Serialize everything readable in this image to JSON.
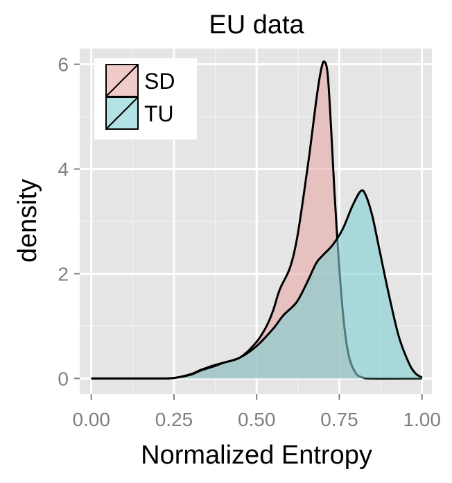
{
  "chart_data": {
    "type": "area",
    "title": "EU data",
    "xlabel": "Normalized Entropy",
    "ylabel": "density",
    "xlim": [
      -0.035,
      1.03
    ],
    "ylim": [
      -0.3,
      6.3
    ],
    "xticks": [
      "0.00",
      "0.25",
      "0.50",
      "0.75",
      "1.00"
    ],
    "xtick_values": [
      0,
      0.25,
      0.5,
      0.75,
      1.0
    ],
    "yticks": [
      "0",
      "2",
      "4",
      "6"
    ],
    "ytick_values": [
      0,
      2,
      4,
      6
    ],
    "grid": true,
    "legend_position": "top-left",
    "series": [
      {
        "name": "SD",
        "fill": "#e8a6a6",
        "points": [
          [
            0,
            0
          ],
          [
            0.2,
            0
          ],
          [
            0.25,
            0.01
          ],
          [
            0.3,
            0.08
          ],
          [
            0.33,
            0.16
          ],
          [
            0.37,
            0.25
          ],
          [
            0.4,
            0.3
          ],
          [
            0.45,
            0.4
          ],
          [
            0.5,
            0.7
          ],
          [
            0.53,
            1.0
          ],
          [
            0.55,
            1.3
          ],
          [
            0.57,
            1.7
          ],
          [
            0.6,
            2.1
          ],
          [
            0.62,
            2.6
          ],
          [
            0.64,
            3.4
          ],
          [
            0.66,
            4.3
          ],
          [
            0.68,
            5.3
          ],
          [
            0.695,
            5.9
          ],
          [
            0.705,
            6.05
          ],
          [
            0.715,
            5.8
          ],
          [
            0.725,
            4.8
          ],
          [
            0.735,
            3.6
          ],
          [
            0.75,
            2.1
          ],
          [
            0.765,
            1.0
          ],
          [
            0.78,
            0.4
          ],
          [
            0.8,
            0.1
          ],
          [
            0.82,
            0.02
          ],
          [
            0.85,
            0
          ],
          [
            1.0,
            0
          ]
        ]
      },
      {
        "name": "TU",
        "fill": "#7ecfd1",
        "points": [
          [
            0,
            0
          ],
          [
            0.2,
            0
          ],
          [
            0.25,
            0.01
          ],
          [
            0.3,
            0.07
          ],
          [
            0.33,
            0.15
          ],
          [
            0.37,
            0.23
          ],
          [
            0.4,
            0.3
          ],
          [
            0.45,
            0.4
          ],
          [
            0.5,
            0.62
          ],
          [
            0.55,
            0.95
          ],
          [
            0.58,
            1.2
          ],
          [
            0.62,
            1.45
          ],
          [
            0.65,
            1.8
          ],
          [
            0.68,
            2.2
          ],
          [
            0.7,
            2.35
          ],
          [
            0.73,
            2.55
          ],
          [
            0.76,
            2.85
          ],
          [
            0.79,
            3.3
          ],
          [
            0.815,
            3.58
          ],
          [
            0.83,
            3.5
          ],
          [
            0.85,
            3.1
          ],
          [
            0.87,
            2.5
          ],
          [
            0.9,
            1.6
          ],
          [
            0.93,
            0.8
          ],
          [
            0.96,
            0.3
          ],
          [
            0.98,
            0.1
          ],
          [
            1.0,
            0.02
          ]
        ]
      }
    ]
  },
  "colors": {
    "panel": "#e5e5e5",
    "grid_major": "#ffffff",
    "grid_minor": "#f2f2f2",
    "outline": "#000000"
  }
}
